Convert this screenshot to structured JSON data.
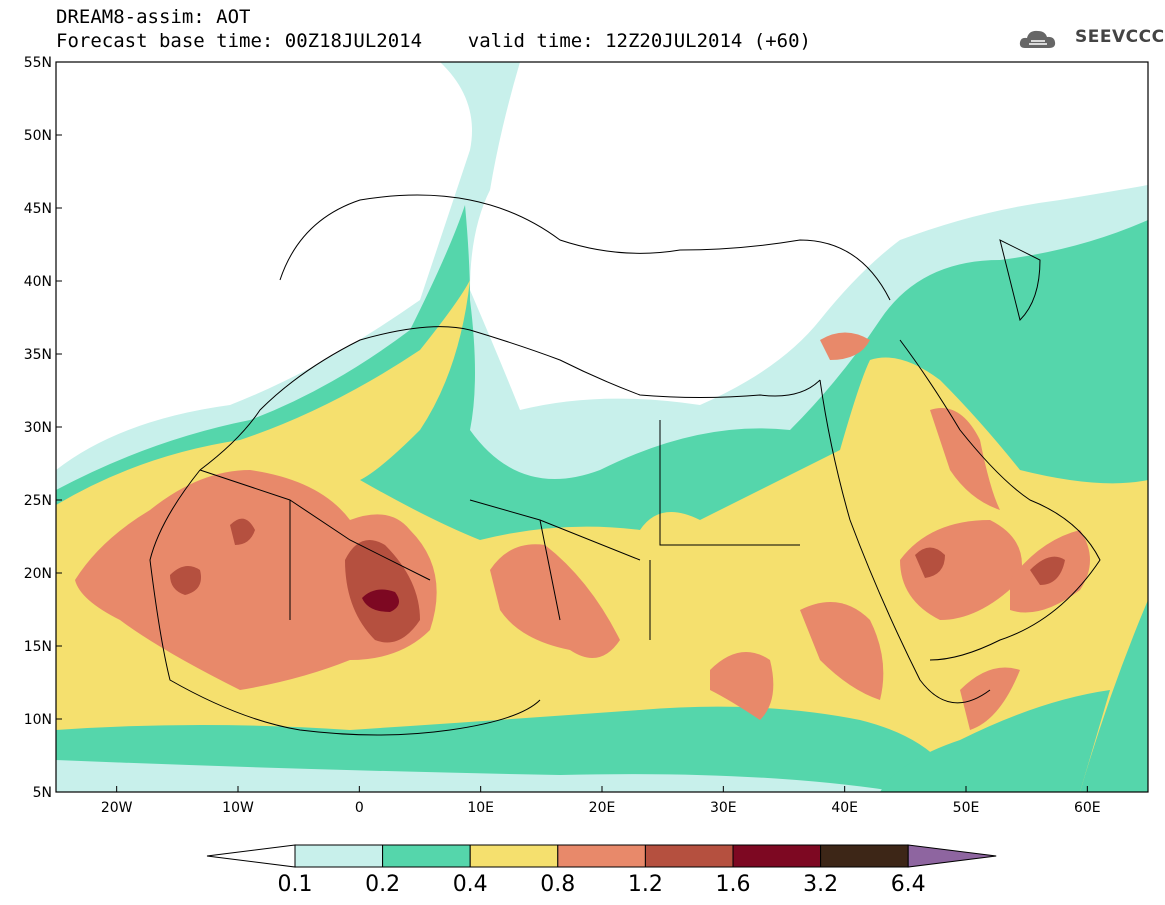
{
  "header": {
    "title": "DREAM8-assim: AOT",
    "subtitle": "Forecast base time: 00Z18JUL2014    valid time: 12Z20JUL2014 (+60)"
  },
  "logo": {
    "text": "SEEVCCC"
  },
  "map": {
    "projection": "equirectangular",
    "lon_range": [
      -25,
      65
    ],
    "lat_range": [
      5,
      55
    ],
    "lat_labels": [
      "55N",
      "50N",
      "45N",
      "40N",
      "35N",
      "30N",
      "25N",
      "20N",
      "15N",
      "10N",
      "5N"
    ],
    "lon_labels": [
      "20W",
      "10W",
      "0",
      "10E",
      "20E",
      "30E",
      "40E",
      "50E",
      "60E"
    ],
    "field": "aerosol optical thickness"
  },
  "colorbar": {
    "labels": [
      "0.1",
      "0.2",
      "0.4",
      "0.8",
      "1.2",
      "1.6",
      "3.2",
      "6.4"
    ],
    "colors": [
      "#c8f0eb",
      "#55d6ab",
      "#f5e06e",
      "#e8896a",
      "#b5503f",
      "#7d0822",
      "#3d2617",
      "#8e65a0"
    ],
    "under_color": "#ffffff"
  },
  "chart_data": {
    "type": "heatmap",
    "title": "DREAM8-assim: AOT",
    "x": {
      "range": [
        -25,
        65
      ],
      "ticks": [
        -20,
        -10,
        0,
        10,
        20,
        30,
        40,
        50,
        60
      ]
    },
    "y": {
      "range": [
        5,
        55
      ],
      "ticks": [
        5,
        10,
        15,
        20,
        25,
        30,
        35,
        40,
        45,
        50,
        55
      ]
    },
    "levels": [
      0.1,
      0.2,
      0.4,
      0.8,
      1.2,
      1.6,
      3.2,
      6.4
    ]
  }
}
